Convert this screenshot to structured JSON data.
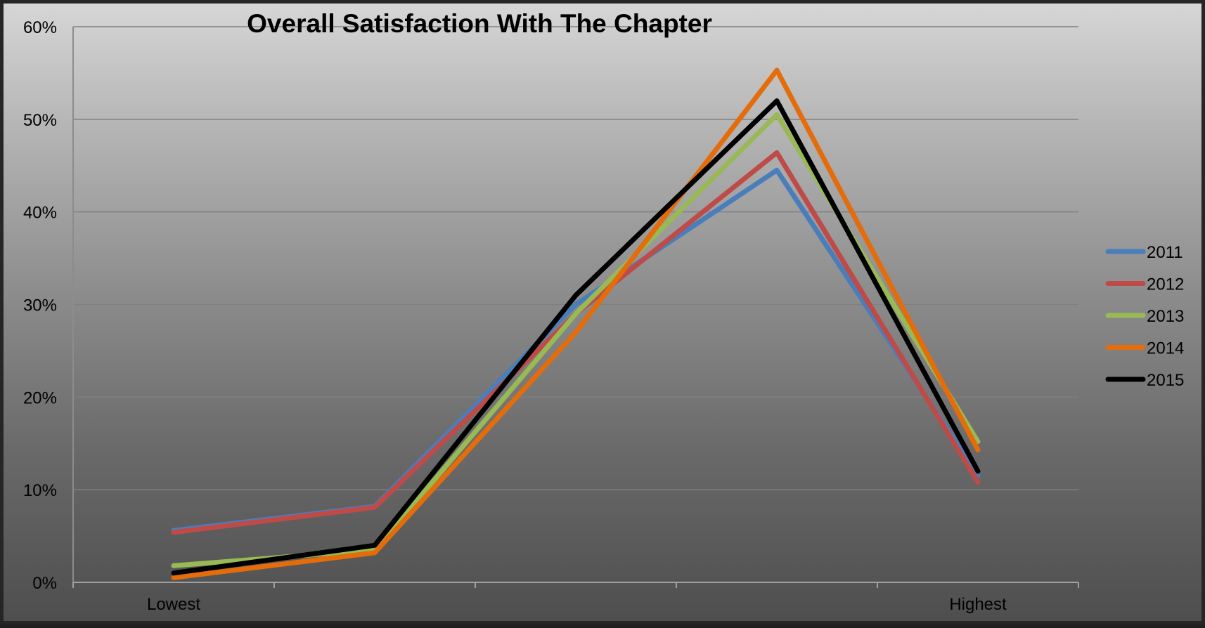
{
  "chart_data": {
    "type": "line",
    "title": "Overall Satisfaction With The Chapter",
    "xlabel": "",
    "ylabel": "",
    "categories": [
      "Lowest",
      "",
      "",
      "",
      "Highest"
    ],
    "x_tick_labels": [
      "Lowest",
      "Highest"
    ],
    "ylim": [
      0,
      0.6
    ],
    "y_ticks": [
      0,
      0.1,
      0.2,
      0.3,
      0.4,
      0.5,
      0.6
    ],
    "y_tick_labels": [
      "0%",
      "10%",
      "20%",
      "30%",
      "40%",
      "50%",
      "60%"
    ],
    "grid": true,
    "legend_position": "right",
    "series": [
      {
        "name": "2011",
        "color": "#4a7ebb",
        "values": [
          0.056,
          0.082,
          0.3,
          0.445,
          0.115
        ]
      },
      {
        "name": "2012",
        "color": "#be4b48",
        "values": [
          0.054,
          0.081,
          0.29,
          0.464,
          0.108
        ]
      },
      {
        "name": "2013",
        "color": "#98b954",
        "values": [
          0.018,
          0.035,
          0.29,
          0.505,
          0.152
        ]
      },
      {
        "name": "2014",
        "color": "#e46c0a",
        "values": [
          0.005,
          0.032,
          0.27,
          0.553,
          0.143
        ]
      },
      {
        "name": "2015",
        "color": "#000000",
        "values": [
          0.01,
          0.04,
          0.31,
          0.52,
          0.12
        ]
      }
    ]
  }
}
